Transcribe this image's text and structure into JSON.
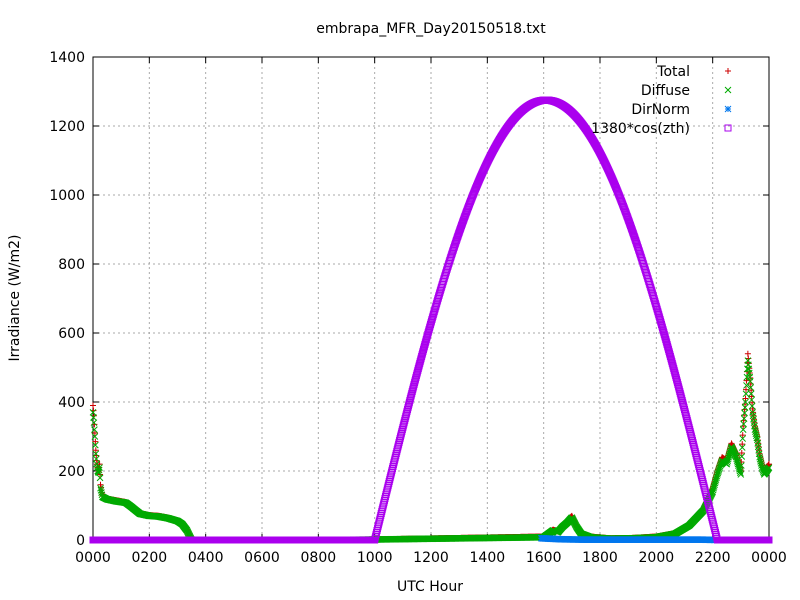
{
  "chart_data": {
    "type": "scatter",
    "title": "embrapa_MFR_Day20150518.txt",
    "xlabel": "UTC Hour",
    "ylabel": "Irradiance (W/m2)",
    "ylim": [
      0,
      1400
    ],
    "yticks": [
      0,
      200,
      400,
      600,
      800,
      1000,
      1200,
      1400
    ],
    "xlim": [
      0,
      1440
    ],
    "xticks": [
      {
        "v": 0,
        "label": "0000"
      },
      {
        "v": 120,
        "label": "0200"
      },
      {
        "v": 240,
        "label": "0400"
      },
      {
        "v": 360,
        "label": "0600"
      },
      {
        "v": 480,
        "label": "0800"
      },
      {
        "v": 600,
        "label": "1000"
      },
      {
        "v": 720,
        "label": "1200"
      },
      {
        "v": 840,
        "label": "1400"
      },
      {
        "v": 960,
        "label": "1600"
      },
      {
        "v": 1080,
        "label": "1800"
      },
      {
        "v": 1200,
        "label": "2000"
      },
      {
        "v": 1320,
        "label": "2200"
      },
      {
        "v": 1440,
        "label": "0000"
      }
    ],
    "grid": true,
    "legend_position": "top-right",
    "series": [
      {
        "name": "Total",
        "color": "#cc0000",
        "marker": "plus",
        "points": [
          [
            0,
            390
          ],
          [
            2,
            360
          ],
          [
            4,
            310
          ],
          [
            6,
            260
          ],
          [
            8,
            230
          ],
          [
            10,
            210
          ],
          [
            12,
            200
          ],
          [
            14,
            220
          ],
          [
            16,
            160
          ],
          [
            20,
            130
          ],
          [
            30,
            120
          ],
          [
            50,
            115
          ],
          [
            70,
            110
          ],
          [
            80,
            100
          ],
          [
            100,
            78
          ],
          [
            120,
            72
          ],
          [
            140,
            70
          ],
          [
            160,
            65
          ],
          [
            180,
            57
          ],
          [
            190,
            48
          ],
          [
            200,
            30
          ],
          [
            210,
            0
          ],
          [
            520,
            0
          ],
          [
            960,
            10
          ],
          [
            970,
            20
          ],
          [
            980,
            30
          ],
          [
            990,
            25
          ],
          [
            1000,
            40
          ],
          [
            1010,
            55
          ],
          [
            1020,
            70
          ],
          [
            1030,
            40
          ],
          [
            1040,
            20
          ],
          [
            1060,
            10
          ],
          [
            1100,
            5
          ],
          [
            1150,
            6
          ],
          [
            1200,
            10
          ],
          [
            1240,
            20
          ],
          [
            1270,
            45
          ],
          [
            1300,
            90
          ],
          [
            1320,
            150
          ],
          [
            1330,
            200
          ],
          [
            1340,
            240
          ],
          [
            1350,
            230
          ],
          [
            1360,
            280
          ],
          [
            1370,
            250
          ],
          [
            1380,
            200
          ],
          [
            1385,
            330
          ],
          [
            1390,
            410
          ],
          [
            1395,
            540
          ],
          [
            1400,
            470
          ],
          [
            1405,
            380
          ],
          [
            1410,
            330
          ],
          [
            1415,
            300
          ],
          [
            1420,
            250
          ],
          [
            1425,
            220
          ],
          [
            1430,
            200
          ],
          [
            1440,
            220
          ]
        ]
      },
      {
        "name": "Diffuse",
        "color": "#00aa00",
        "marker": "cross",
        "points": [
          [
            0,
            370
          ],
          [
            2,
            340
          ],
          [
            4,
            300
          ],
          [
            6,
            250
          ],
          [
            8,
            220
          ],
          [
            10,
            200
          ],
          [
            12,
            195
          ],
          [
            14,
            210
          ],
          [
            16,
            150
          ],
          [
            20,
            125
          ],
          [
            30,
            118
          ],
          [
            50,
            112
          ],
          [
            70,
            108
          ],
          [
            80,
            98
          ],
          [
            100,
            76
          ],
          [
            120,
            70
          ],
          [
            140,
            68
          ],
          [
            160,
            63
          ],
          [
            180,
            55
          ],
          [
            190,
            46
          ],
          [
            200,
            28
          ],
          [
            210,
            0
          ],
          [
            520,
            0
          ],
          [
            960,
            8
          ],
          [
            970,
            18
          ],
          [
            980,
            28
          ],
          [
            990,
            22
          ],
          [
            1000,
            38
          ],
          [
            1010,
            50
          ],
          [
            1020,
            65
          ],
          [
            1030,
            38
          ],
          [
            1040,
            18
          ],
          [
            1060,
            8
          ],
          [
            1100,
            4
          ],
          [
            1150,
            5
          ],
          [
            1200,
            8
          ],
          [
            1240,
            18
          ],
          [
            1270,
            42
          ],
          [
            1300,
            85
          ],
          [
            1320,
            140
          ],
          [
            1330,
            190
          ],
          [
            1340,
            230
          ],
          [
            1350,
            220
          ],
          [
            1360,
            270
          ],
          [
            1370,
            240
          ],
          [
            1380,
            190
          ],
          [
            1385,
            320
          ],
          [
            1390,
            400
          ],
          [
            1395,
            520
          ],
          [
            1400,
            460
          ],
          [
            1405,
            370
          ],
          [
            1410,
            320
          ],
          [
            1415,
            290
          ],
          [
            1420,
            240
          ],
          [
            1425,
            210
          ],
          [
            1430,
            190
          ],
          [
            1440,
            210
          ]
        ]
      },
      {
        "name": "DirNorm",
        "color": "#0077ee",
        "marker": "star",
        "points": [
          [
            955,
            5
          ],
          [
            1000,
            2
          ],
          [
            1050,
            1
          ],
          [
            1100,
            1
          ],
          [
            1150,
            1
          ],
          [
            1200,
            1
          ],
          [
            1250,
            1
          ],
          [
            1300,
            1
          ],
          [
            1325,
            0
          ]
        ]
      },
      {
        "name": "1380*cos(zth)",
        "color": "#aa00ee",
        "marker": "square",
        "sunrise": 600,
        "peak_x": 965,
        "peak_y": 1275,
        "sunset": 1330
      }
    ]
  }
}
